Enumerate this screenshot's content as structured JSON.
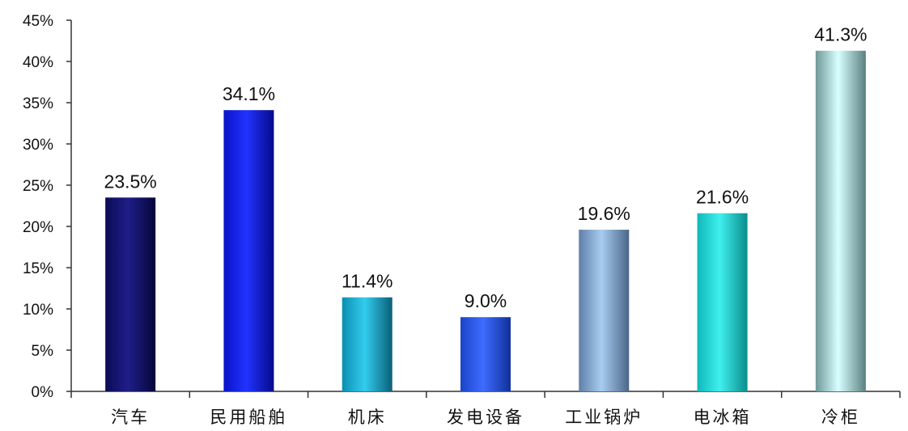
{
  "chart_data": {
    "type": "bar",
    "title": "",
    "xlabel": "",
    "ylabel": "",
    "categories": [
      "汽车",
      "民用船舶",
      "机床",
      "发电设备",
      "工业锅炉",
      "电冰箱",
      "冷柜"
    ],
    "values": [
      23.5,
      34.1,
      11.4,
      9.0,
      19.6,
      21.6,
      41.3
    ],
    "data_labels": [
      "23.5%",
      "34.1%",
      "11.4%",
      "9.0%",
      "19.6%",
      "21.6%",
      "41.3%"
    ],
    "yticks": [
      "0%",
      "5%",
      "10%",
      "15%",
      "20%",
      "25%",
      "30%",
      "35%",
      "40%",
      "45%"
    ],
    "ylim": [
      0,
      45
    ],
    "grid": false,
    "legend": "none",
    "bar_colors": [
      [
        "#0b0b55",
        "#1e1e88",
        "#06063a"
      ],
      [
        "#0a12c8",
        "#2233ff",
        "#050a8a"
      ],
      [
        "#0a8fb0",
        "#33ccee",
        "#0a5f78"
      ],
      [
        "#1a44c8",
        "#3f6cff",
        "#10309a"
      ],
      [
        "#5f7fa8",
        "#a8ccf0",
        "#4a6688"
      ],
      [
        "#0fb8b8",
        "#40f0ee",
        "#0a8c8c"
      ],
      [
        "#6f9898",
        "#d8ffff",
        "#5a8080"
      ]
    ],
    "axis_color": "#333333"
  }
}
